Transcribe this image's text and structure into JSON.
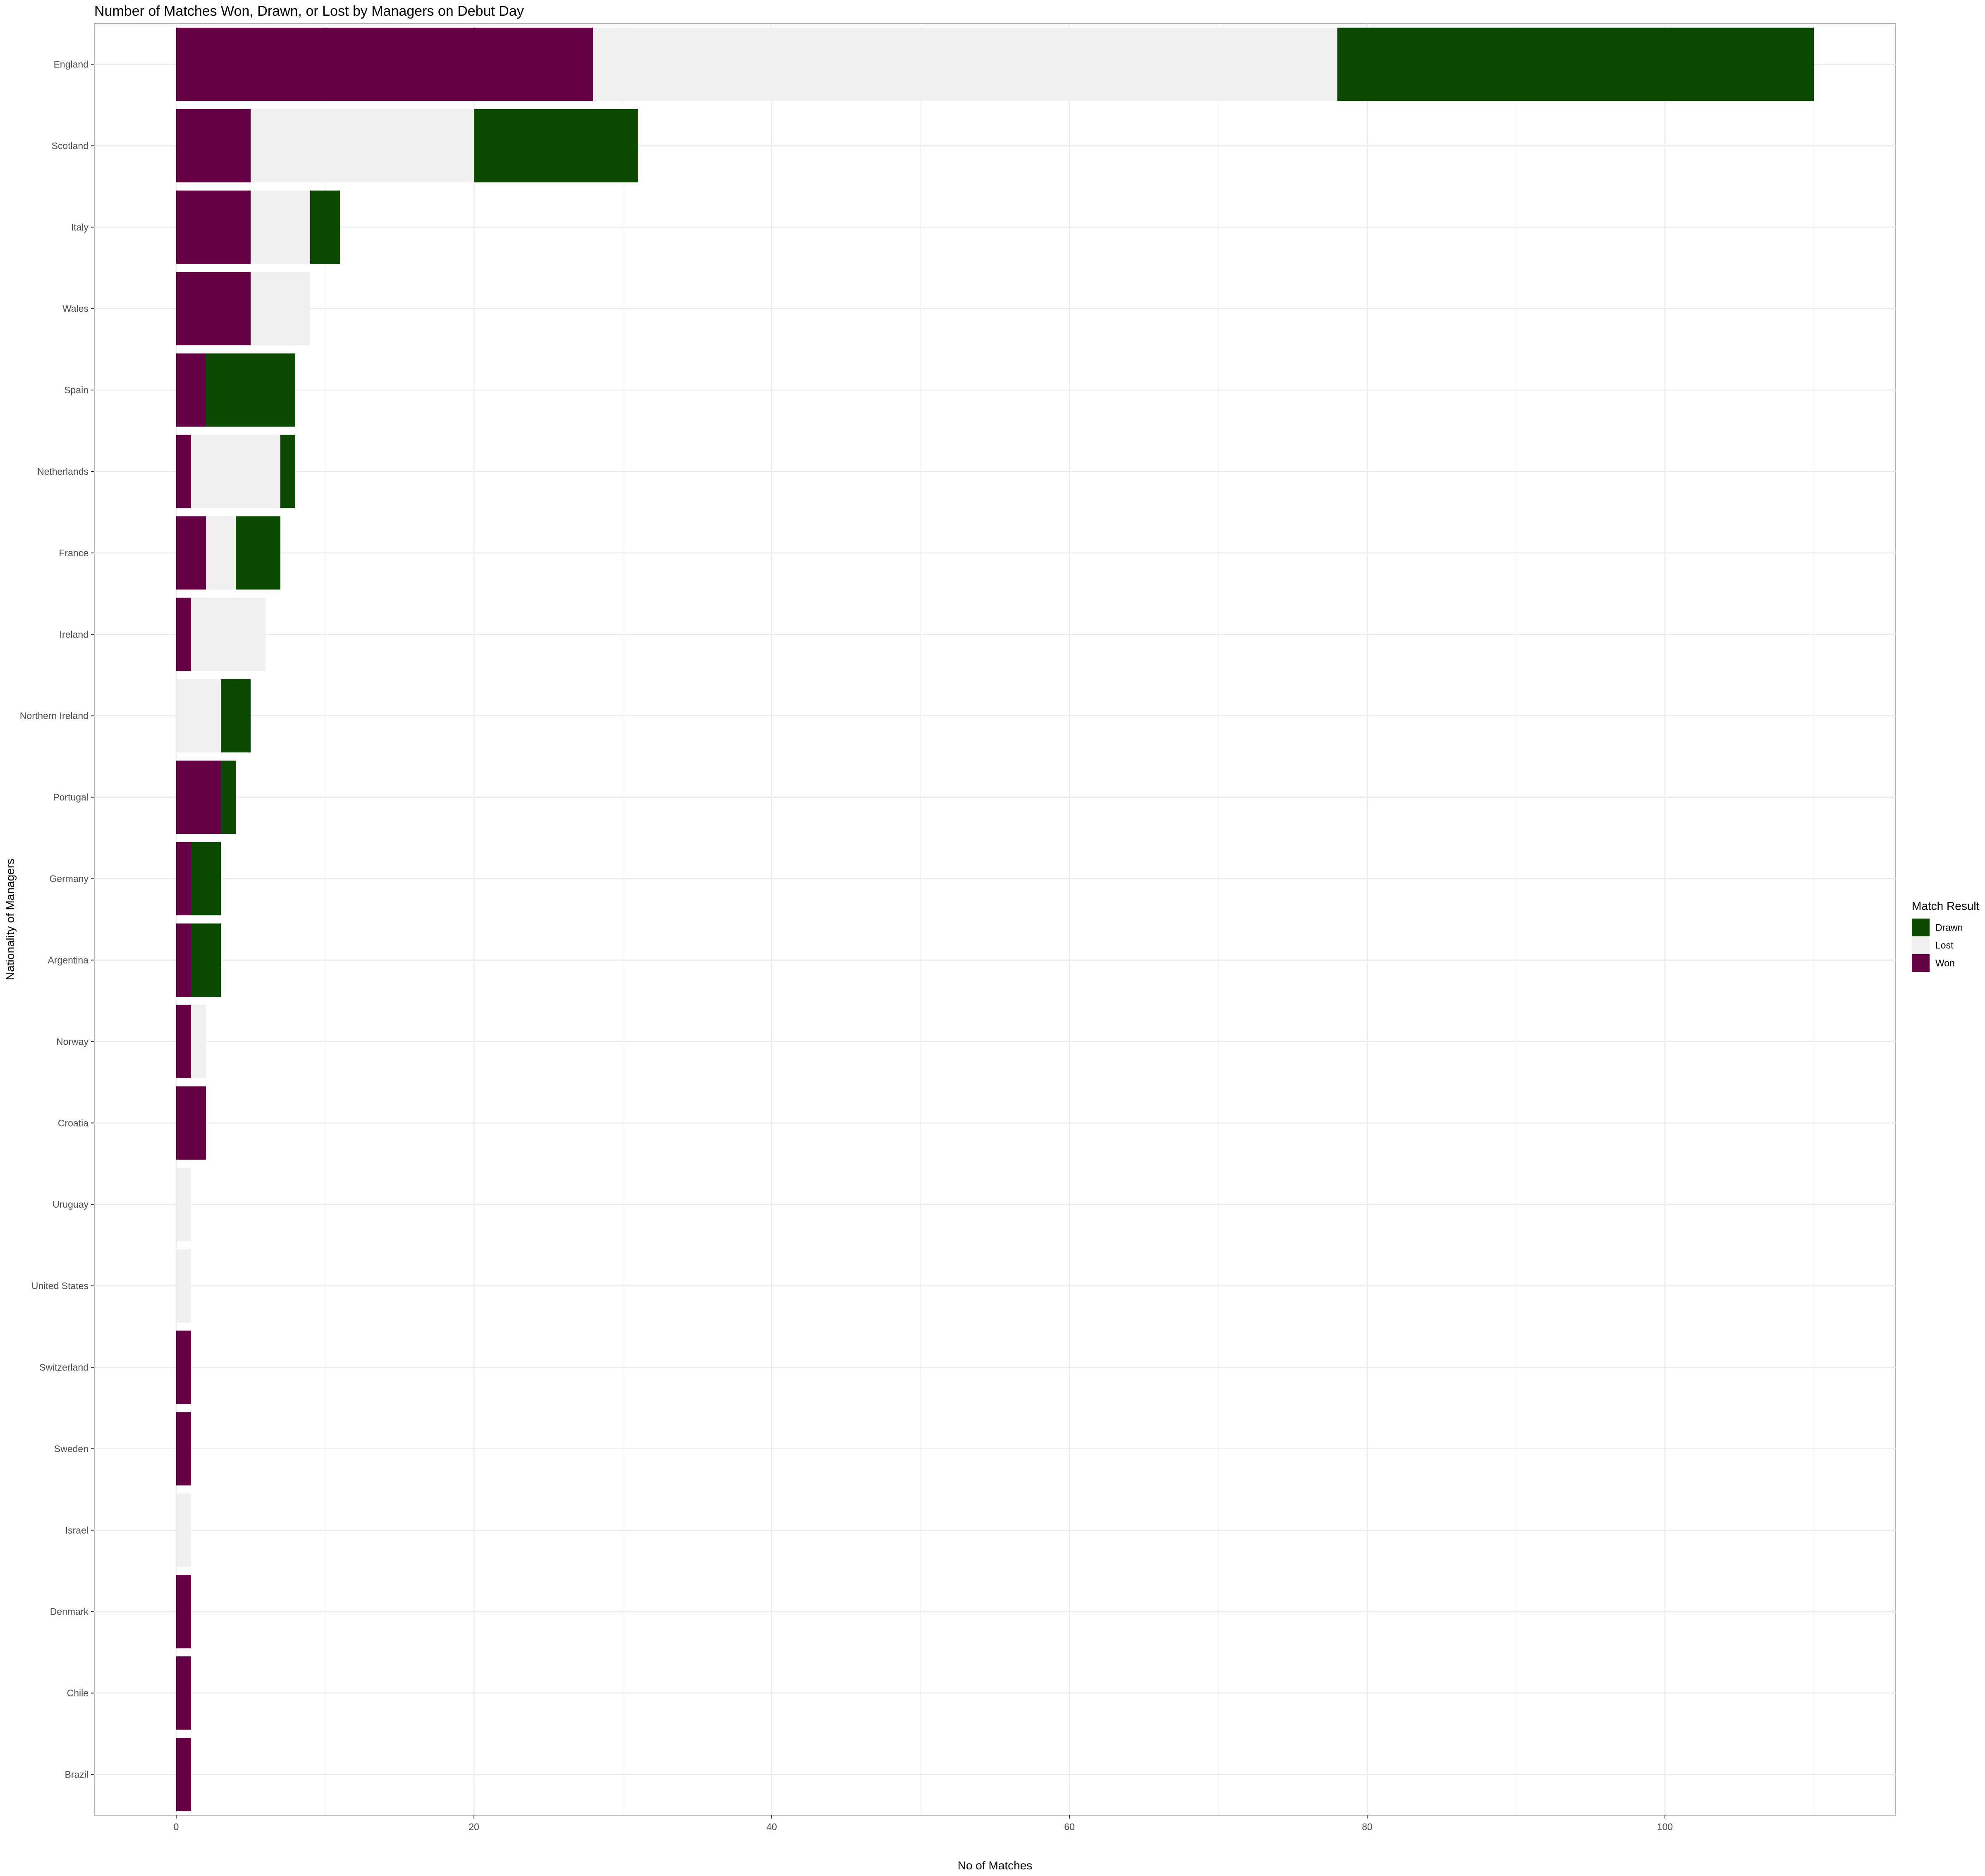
{
  "chart_data": {
    "type": "bar",
    "orientation": "horizontal",
    "stacked": true,
    "title": "Number of Matches Won, Drawn, or Lost by Managers on Debut Day",
    "xlabel": "No of Matches",
    "ylabel": "Nationality of Managers",
    "xlim": [
      -5.5,
      115.5
    ],
    "x_ticks": [
      0,
      20,
      40,
      60,
      80,
      100
    ],
    "grid": true,
    "legend_position": "right",
    "categories": [
      "England",
      "Scotland",
      "Italy",
      "Wales",
      "Spain",
      "Netherlands",
      "France",
      "Ireland",
      "Northern Ireland",
      "Portugal",
      "Germany",
      "Argentina",
      "Norway",
      "Croatia",
      "Uruguay",
      "United States",
      "Switzerland",
      "Sweden",
      "Israel",
      "Denmark",
      "Chile",
      "Brazil"
    ],
    "series": [
      {
        "name": "Won",
        "color": "#660045",
        "values": [
          28,
          5,
          5,
          5,
          2,
          1,
          2,
          1,
          0,
          3,
          1,
          1,
          1,
          2,
          0,
          0,
          1,
          1,
          0,
          1,
          1,
          1
        ]
      },
      {
        "name": "Lost",
        "color": "#f2efef",
        "values": [
          50,
          15,
          4,
          4,
          0,
          6,
          2,
          5,
          3,
          0,
          0,
          0,
          1,
          0,
          1,
          1,
          0,
          0,
          1,
          0,
          0,
          0
        ]
      },
      {
        "name": "Drawn",
        "color": "#0b4b00",
        "values": [
          32,
          11,
          2,
          0,
          6,
          1,
          3,
          0,
          2,
          1,
          2,
          2,
          0,
          0,
          0,
          0,
          0,
          0,
          0,
          0,
          0,
          0
        ]
      }
    ],
    "legend": {
      "title": "Match Result",
      "entries": [
        {
          "name": "Drawn",
          "color": "#0b4b00"
        },
        {
          "name": "Lost",
          "color": "#f2efef"
        },
        {
          "name": "Won",
          "color": "#660045"
        }
      ]
    }
  }
}
